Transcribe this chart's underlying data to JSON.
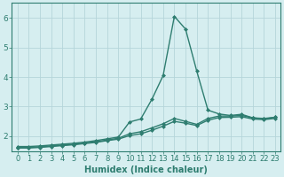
{
  "xlabel": "Humidex (Indice chaleur)",
  "x_values": [
    0,
    1,
    2,
    3,
    4,
    5,
    6,
    7,
    8,
    9,
    10,
    11,
    12,
    13,
    14,
    15,
    16,
    17,
    18,
    19,
    20,
    21,
    22,
    23
  ],
  "line1_y": [
    1.65,
    1.65,
    1.67,
    1.7,
    1.73,
    1.76,
    1.8,
    1.85,
    1.91,
    1.97,
    2.48,
    2.58,
    3.25,
    4.05,
    6.05,
    5.62,
    4.2,
    2.88,
    2.75,
    2.7,
    2.74,
    2.62,
    2.58,
    2.64
  ],
  "line2_y": [
    1.62,
    1.62,
    1.64,
    1.67,
    1.7,
    1.73,
    1.77,
    1.81,
    1.87,
    1.93,
    2.08,
    2.15,
    2.28,
    2.42,
    2.6,
    2.5,
    2.4,
    2.6,
    2.68,
    2.68,
    2.7,
    2.62,
    2.6,
    2.64
  ],
  "line3_y": [
    1.6,
    1.6,
    1.62,
    1.65,
    1.68,
    1.71,
    1.75,
    1.79,
    1.85,
    1.9,
    2.02,
    2.08,
    2.2,
    2.34,
    2.5,
    2.44,
    2.36,
    2.54,
    2.63,
    2.64,
    2.66,
    2.58,
    2.56,
    2.6
  ],
  "line_color": "#2e7d70",
  "bg_color": "#d6eef0",
  "grid_color": "#b5d5da",
  "ylim": [
    1.5,
    6.5
  ],
  "xlim": [
    -0.5,
    23.5
  ],
  "yticks": [
    2,
    3,
    4,
    5,
    6
  ],
  "xticks": [
    0,
    1,
    2,
    3,
    4,
    5,
    6,
    7,
    8,
    9,
    10,
    11,
    12,
    13,
    14,
    15,
    16,
    17,
    18,
    19,
    20,
    21,
    22,
    23
  ],
  "marker": "D",
  "marker_size": 2.0,
  "line_width": 1.0,
  "tick_fontsize": 6.0,
  "xlabel_fontsize": 7.0
}
